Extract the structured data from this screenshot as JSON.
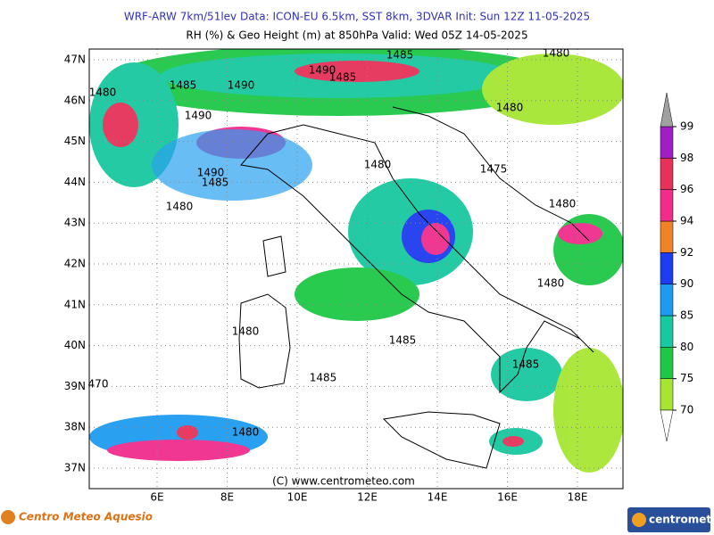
{
  "header": {
    "line1": "WRF-ARW 7km/51lev  Data: ICON-EU 6.5km, SST 8km, 3DVAR  Init: Sun 12Z 11-05-2025",
    "line2": "RH (%) & Geo Height (m) at 850hPa  Valid: Wed 05Z 14-05-2025"
  },
  "map": {
    "lat_labels": [
      "47N",
      "46N",
      "45N",
      "44N",
      "43N",
      "42N",
      "41N",
      "40N",
      "39N",
      "38N",
      "37N"
    ],
    "lon_labels": [
      "6E",
      "8E",
      "10E",
      "12E",
      "14E",
      "16E",
      "18E"
    ],
    "contour_labels": [
      "1485",
      "1480",
      "1480",
      "1485",
      "1490",
      "1485",
      "1490",
      "1490",
      "1480",
      "1480",
      "1475",
      "1490",
      "1485",
      "1480",
      "1480",
      "1480",
      "1480",
      "1485",
      "1485",
      "1485",
      "470",
      "1480"
    ],
    "credit": "(C) www.centrometeo.com"
  },
  "colorbar": {
    "ticks": [
      70,
      75,
      80,
      85,
      90,
      92,
      94,
      96,
      98,
      99
    ],
    "colors": [
      "#a6e632",
      "#1ec846",
      "#18c8a0",
      "#1e9bf0",
      "#1e3cf0",
      "#f08228",
      "#f02d8c",
      "#e6325a",
      "#a01ec8"
    ],
    "over_color": "#a0a0a0"
  },
  "footer": {
    "logo_left": "Centro Meteo Aquesio",
    "logo_right": "centrometeo"
  }
}
